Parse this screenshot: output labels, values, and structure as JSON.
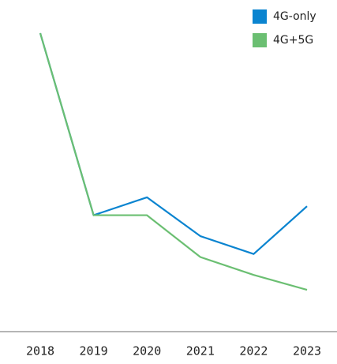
{
  "chart_data": {
    "type": "line",
    "categories": [
      "2018",
      "2019",
      "2020",
      "2021",
      "2022",
      "2023"
    ],
    "series": [
      {
        "name": "4G-only",
        "color": "#0a84d0",
        "values": [
          100,
          39,
          45,
          32,
          26,
          42
        ]
      },
      {
        "name": "4G+5G",
        "color": "#6bbf72",
        "values": [
          100,
          39,
          39,
          25,
          19,
          14
        ]
      }
    ],
    "ylim": [
      0,
      100
    ]
  }
}
